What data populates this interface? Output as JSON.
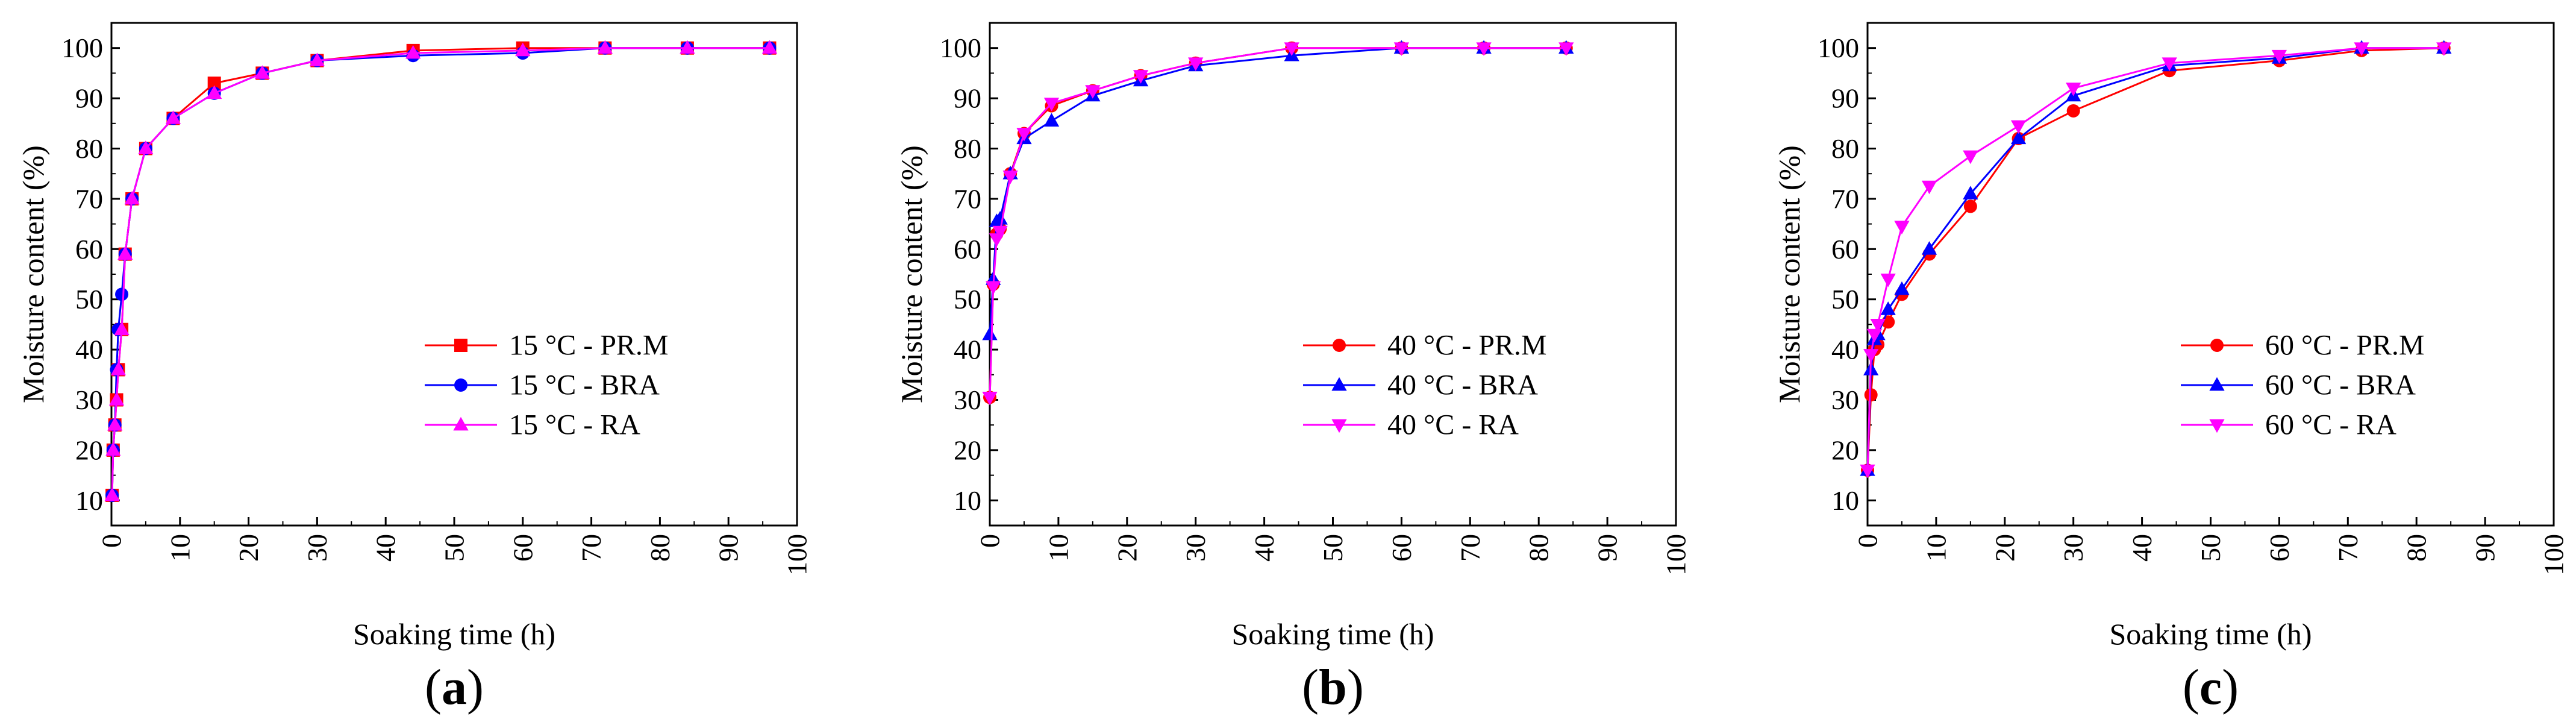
{
  "chart_data": [
    {
      "type": "line",
      "panel_label": "(a)",
      "panel_letter": "a",
      "xlabel": "Soaking time (h)",
      "ylabel": "Moisture content (%)",
      "xlim": [
        0,
        100
      ],
      "ylim": [
        5,
        105
      ],
      "xticks": [
        0,
        10,
        20,
        30,
        40,
        50,
        60,
        70,
        80,
        90,
        100
      ],
      "yticks": [
        10,
        20,
        30,
        40,
        50,
        60,
        70,
        80,
        90,
        100
      ],
      "legend_position": "center-right",
      "series": [
        {
          "name": "15 °C - PR.M",
          "color": "#ff0000",
          "marker": "square",
          "x": [
            0.1,
            0.25,
            0.5,
            0.75,
            1,
            1.5,
            2,
            3,
            5,
            9,
            15,
            22,
            30,
            44,
            60,
            72,
            84,
            96
          ],
          "y": [
            11,
            20,
            25,
            30,
            36,
            44,
            59,
            70,
            80,
            86,
            93,
            95,
            97.5,
            99.5,
            100,
            100,
            100,
            100
          ]
        },
        {
          "name": "15 °C - BRA",
          "color": "#0000ff",
          "marker": "circle",
          "x": [
            0.1,
            0.25,
            0.5,
            0.75,
            1,
            1.5,
            2,
            3,
            5,
            9,
            15,
            22,
            30,
            44,
            60,
            72,
            84,
            96
          ],
          "y": [
            11,
            20,
            25,
            36,
            44,
            51,
            59,
            70,
            80,
            86,
            91,
            95,
            97.5,
            98.5,
            99,
            100,
            100,
            100
          ]
        },
        {
          "name": "15 °C - RA",
          "color": "#ff00ff",
          "marker": "triangle-up",
          "x": [
            0.1,
            0.25,
            0.5,
            0.75,
            1,
            1.5,
            2,
            3,
            5,
            9,
            15,
            22,
            30,
            44,
            60,
            72,
            84,
            96
          ],
          "y": [
            11,
            20,
            25,
            30,
            36,
            44,
            59,
            70,
            80,
            86,
            91,
            95,
            97.5,
            99,
            99.5,
            100,
            100,
            100
          ]
        }
      ]
    },
    {
      "type": "line",
      "panel_label": "(b)",
      "panel_letter": "b",
      "xlabel": "Soaking time (h)",
      "ylabel": "Moisture content (%)",
      "xlim": [
        0,
        100
      ],
      "ylim": [
        5,
        105
      ],
      "xticks": [
        0,
        10,
        20,
        30,
        40,
        50,
        60,
        70,
        80,
        90,
        100
      ],
      "yticks": [
        10,
        20,
        30,
        40,
        50,
        60,
        70,
        80,
        90,
        100
      ],
      "legend_position": "center-right",
      "series": [
        {
          "name": "40 °C - PR.M",
          "color": "#ff0000",
          "marker": "circle",
          "x": [
            0,
            0.5,
            1,
            1.5,
            3,
            5,
            9,
            15,
            22,
            30,
            44,
            60,
            72,
            84
          ],
          "y": [
            30.5,
            53,
            63,
            64,
            75,
            83,
            88.5,
            91.5,
            94.5,
            97,
            100,
            100,
            100,
            100
          ]
        },
        {
          "name": "40 °C - BRA",
          "color": "#0000ff",
          "marker": "triangle-up",
          "x": [
            0,
            0.5,
            1,
            1.5,
            3,
            5,
            9,
            15,
            22,
            30,
            44,
            60,
            72,
            84
          ],
          "y": [
            43,
            54,
            65.5,
            66,
            75,
            82,
            85.5,
            90.5,
            93.5,
            96.5,
            98.5,
            100,
            100,
            100
          ]
        },
        {
          "name": "40 °C - RA",
          "color": "#ff00ff",
          "marker": "triangle-down",
          "x": [
            0,
            0.5,
            1,
            1.5,
            3,
            5,
            9,
            15,
            22,
            30,
            44,
            60,
            72,
            84
          ],
          "y": [
            30.5,
            52.5,
            62,
            63.5,
            74.5,
            83,
            89,
            91.5,
            94.5,
            97,
            100,
            100,
            100,
            100
          ]
        }
      ]
    },
    {
      "type": "line",
      "panel_label": "(c)",
      "panel_letter": "c",
      "xlabel": "Soaking time (h)",
      "ylabel": "Moisture content (%)",
      "xlim": [
        0,
        100
      ],
      "ylim": [
        5,
        105
      ],
      "xticks": [
        0,
        10,
        20,
        30,
        40,
        50,
        60,
        70,
        80,
        90,
        100
      ],
      "yticks": [
        10,
        20,
        30,
        40,
        50,
        60,
        70,
        80,
        90,
        100
      ],
      "legend_position": "center-right",
      "series": [
        {
          "name": "60 °C - PR.M",
          "color": "#ff0000",
          "marker": "circle",
          "x": [
            0,
            0.5,
            1,
            1.5,
            3,
            5,
            9,
            15,
            22,
            30,
            44,
            60,
            72,
            84
          ],
          "y": [
            16,
            31,
            40,
            41,
            45.5,
            51,
            59,
            68.5,
            82,
            87.5,
            95.5,
            97.5,
            99.5,
            100
          ]
        },
        {
          "name": "60 °C - BRA",
          "color": "#0000ff",
          "marker": "triangle-up",
          "x": [
            0,
            0.5,
            1,
            1.5,
            3,
            5,
            9,
            15,
            22,
            30,
            44,
            60,
            72,
            84
          ],
          "y": [
            16,
            36,
            42,
            43,
            48,
            52,
            60,
            71,
            82,
            90.5,
            96.5,
            98,
            100,
            100
          ]
        },
        {
          "name": "60 °C - RA",
          "color": "#ff00ff",
          "marker": "triangle-down",
          "x": [
            0,
            0.5,
            1,
            1.5,
            3,
            5,
            9,
            15,
            22,
            30,
            44,
            60,
            72,
            84
          ],
          "y": [
            16,
            39,
            43,
            45,
            54,
            64.5,
            72.5,
            78.5,
            84.5,
            92,
            97,
            98.5,
            100,
            100
          ]
        }
      ]
    }
  ]
}
